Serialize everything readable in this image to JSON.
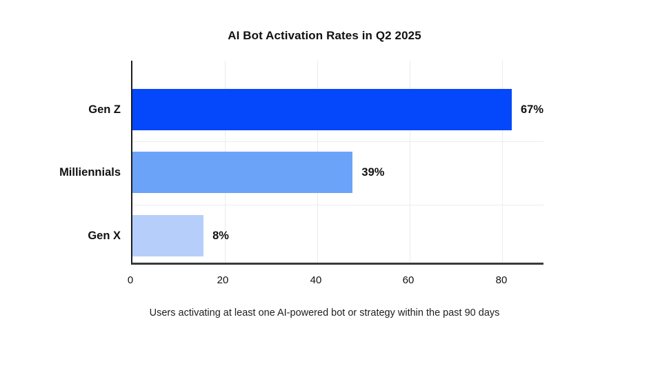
{
  "chart_data": {
    "type": "bar",
    "orientation": "horizontal",
    "title": "AI Bot Activation Rates in Q2 2025",
    "caption": "Users activating at least one AI-powered bot or strategy within the past 90 days",
    "categories": [
      "Gen Z",
      "Milliennials",
      "Gen X"
    ],
    "values": [
      67,
      39,
      8
    ],
    "value_labels": [
      "67%",
      "39%",
      "8%"
    ],
    "bar_colors": [
      "#0547FA",
      "#6BA3F8",
      "#B6CFFA"
    ],
    "bar_axis_extents": [
      85,
      47.7,
      15.4
    ],
    "xlim": [
      0,
      89
    ],
    "x_ticks": [
      0,
      20,
      40,
      60,
      80
    ],
    "x_tick_labels": [
      "0",
      "20",
      "40",
      "60",
      "80"
    ],
    "xlabel": "Users activating at least one AI-powered bot or strategy within the past 90 days",
    "ylabel": "",
    "grid": true,
    "legend_position": "none"
  },
  "colors": {
    "axis_line": "#1c1c1c",
    "gridline": "#ececec",
    "text": "#111111",
    "background": "#ffffff"
  }
}
